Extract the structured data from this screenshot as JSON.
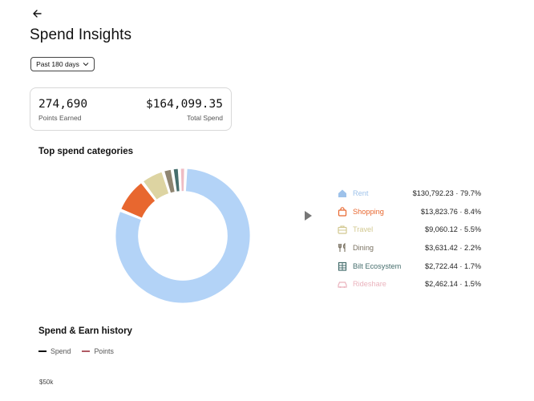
{
  "page": {
    "title": "Spend Insights"
  },
  "filter": {
    "range_label": "Past 180 days"
  },
  "summary": {
    "points_value": "274,690",
    "points_label": "Points Earned",
    "spend_value": "$164,099.35",
    "spend_label": "Total Spend"
  },
  "sections": {
    "categories_title": "Top spend categories",
    "history_title": "Spend & Earn history"
  },
  "chart_data": {
    "type": "pie",
    "title": "Top spend categories",
    "hole": 0.66,
    "slices": [
      {
        "name": "Rent",
        "amount": "$130,792.23",
        "percent": "79.7%",
        "value": 79.7,
        "color": "#b3d3f7",
        "label_color": "#9ec2ea",
        "icon": "house-icon"
      },
      {
        "name": "Shopping",
        "amount": "$13,823.76",
        "percent": "8.4%",
        "value": 8.4,
        "color": "#e8672f",
        "label_color": "#e8672f",
        "icon": "shopping-bag-icon"
      },
      {
        "name": "Travel",
        "amount": "$9,060.12",
        "percent": "5.5%",
        "value": 5.5,
        "color": "#ddd4a2",
        "label_color": "#d2c890",
        "icon": "suitcase-icon"
      },
      {
        "name": "Dining",
        "amount": "$3,631.42",
        "percent": "2.2%",
        "value": 2.2,
        "color": "#8f8571",
        "label_color": "#7a7262",
        "icon": "fork-knife-icon"
      },
      {
        "name": "Bilt Ecosystem",
        "amount": "$2,722.44",
        "percent": "1.7%",
        "value": 1.7,
        "color": "#466e6d",
        "label_color": "#466e6d",
        "icon": "building-icon"
      },
      {
        "name": "Rideshare",
        "amount": "$2,462.14",
        "percent": "1.5%",
        "value": 1.5,
        "color": "#efbcc4",
        "label_color": "#eab3bd",
        "icon": "car-icon"
      }
    ]
  },
  "history": {
    "legend": [
      {
        "name": "Spend",
        "color": "#111111"
      },
      {
        "name": "Points",
        "color": "#b05a64"
      }
    ],
    "ytick_top": "$50k"
  }
}
